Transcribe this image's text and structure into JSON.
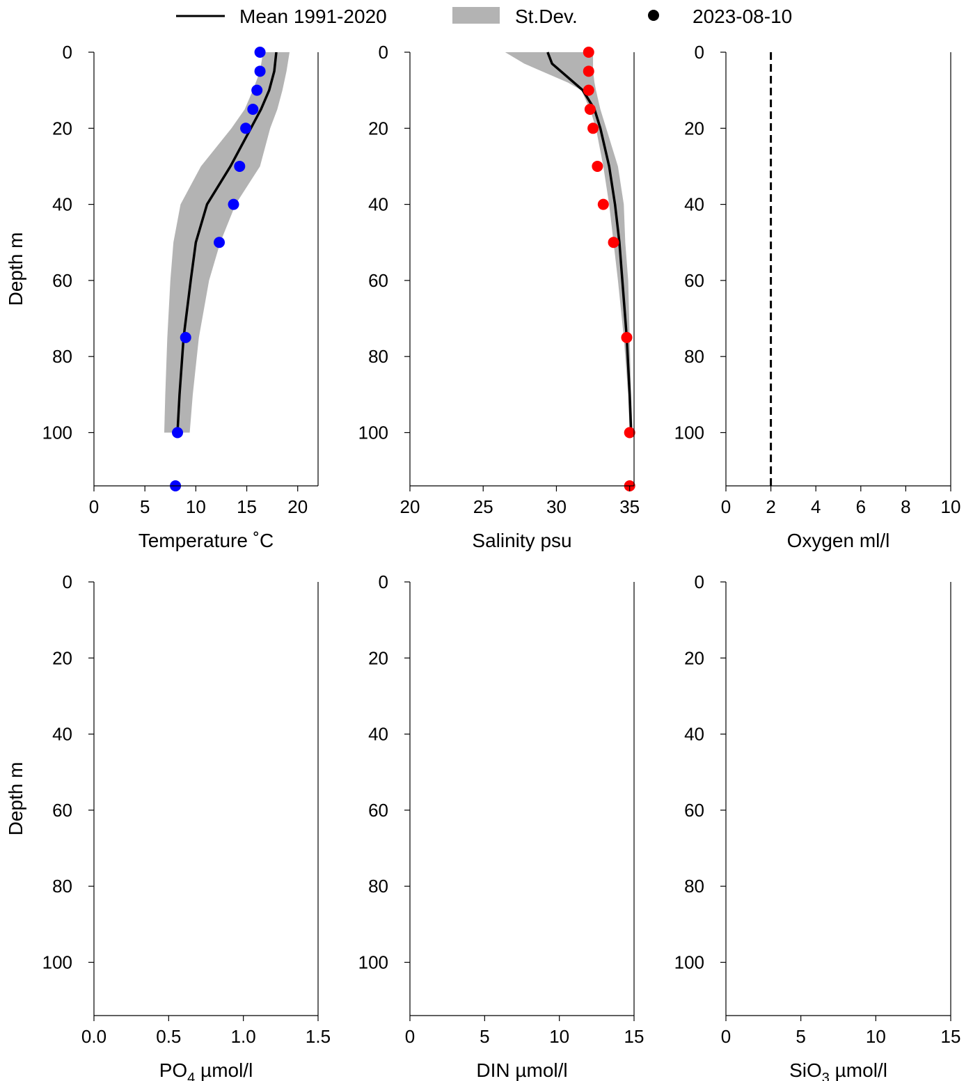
{
  "legend": {
    "placement": "top-center",
    "items": [
      {
        "label": "Mean 1991-2020",
        "kind": "line",
        "color": "#000000"
      },
      {
        "label": "St.Dev.",
        "kind": "band",
        "color": "#b3b3b3"
      },
      {
        "label": "2023-08-10",
        "kind": "marker",
        "color": "#000000"
      }
    ]
  },
  "chart_data": [
    {
      "type": "line",
      "orientation": "depth-profile",
      "xlabel": "Temperature",
      "xlabel_unit": "˚C",
      "ylabel": "Depth m",
      "xlim": [
        0,
        22
      ],
      "ylim": [
        114,
        0
      ],
      "xticks": [
        0,
        5,
        10,
        15,
        20
      ],
      "xtick_labels": [
        "0",
        "5",
        "10",
        "15",
        "20"
      ],
      "yticks": [
        0,
        20,
        40,
        60,
        80,
        100
      ],
      "ytick_labels": [
        "0",
        "20",
        "40",
        "60",
        "80",
        "100"
      ],
      "mean": {
        "depth": [
          0,
          5,
          10,
          15,
          20,
          30,
          40,
          50,
          60,
          75,
          90,
          100
        ],
        "value": [
          17.9,
          17.7,
          17.2,
          16.4,
          15.4,
          13.4,
          11.1,
          10.0,
          9.5,
          8.8,
          8.4,
          8.2
        ]
      },
      "std_band": {
        "depth": [
          0,
          5,
          10,
          15,
          20,
          30,
          40,
          50,
          60,
          75,
          90,
          100
        ],
        "lower": [
          16.6,
          16.3,
          15.6,
          14.8,
          13.5,
          10.5,
          8.5,
          7.8,
          7.5,
          7.2,
          7.0,
          6.9
        ],
        "upper": [
          19.2,
          18.9,
          18.5,
          18.0,
          17.3,
          16.3,
          13.9,
          12.4,
          11.3,
          10.3,
          9.7,
          9.4
        ]
      },
      "observed": {
        "color": "#0000ff",
        "depth": [
          0,
          5,
          10,
          15,
          20,
          30,
          40,
          50,
          75,
          100,
          114
        ],
        "value": [
          16.3,
          16.3,
          16.0,
          15.6,
          14.9,
          14.3,
          13.7,
          12.3,
          9.0,
          8.2,
          8.0
        ]
      }
    },
    {
      "type": "line",
      "orientation": "depth-profile",
      "xlabel": "Salinity psu",
      "ylabel": "",
      "xlim": [
        20,
        35.3
      ],
      "ylim": [
        114,
        0
      ],
      "xticks": [
        20,
        25,
        30,
        35
      ],
      "xtick_labels": [
        "20",
        "25",
        "30",
        "35"
      ],
      "yticks": [
        0,
        20,
        40,
        60,
        80,
        100
      ],
      "ytick_labels": [
        "0",
        "20",
        "40",
        "60",
        "80",
        "100"
      ],
      "mean": {
        "depth": [
          0,
          3,
          5,
          8,
          10,
          15,
          20,
          30,
          40,
          50,
          60,
          75,
          90,
          100
        ],
        "value": [
          29.4,
          29.7,
          30.3,
          31.2,
          31.8,
          32.6,
          33.0,
          33.6,
          34.0,
          34.3,
          34.5,
          34.8,
          35.0,
          35.1
        ]
      },
      "std_band": {
        "depth": [
          0,
          3,
          5,
          8,
          10,
          15,
          20,
          30,
          40,
          50,
          60,
          75,
          90,
          100
        ],
        "lower": [
          26.5,
          27.8,
          29.0,
          30.8,
          31.7,
          32.3,
          32.7,
          33.2,
          33.6,
          33.9,
          34.2,
          34.6,
          34.9,
          35.0
        ],
        "upper": [
          32.5,
          32.5,
          32.5,
          32.6,
          32.7,
          33.0,
          33.4,
          34.2,
          34.6,
          34.7,
          34.9,
          35.0,
          35.1,
          35.2
        ]
      },
      "observed": {
        "color": "#ff0000",
        "depth": [
          0,
          5,
          10,
          15,
          20,
          30,
          40,
          50,
          75,
          100,
          114
        ],
        "value": [
          32.2,
          32.2,
          32.2,
          32.3,
          32.5,
          32.8,
          33.2,
          33.9,
          34.8,
          35.0,
          35.0
        ]
      }
    },
    {
      "type": "line",
      "orientation": "depth-profile",
      "xlabel": "Oxygen ml/l",
      "ylabel": "",
      "xlim": [
        0,
        10
      ],
      "ylim": [
        114,
        0
      ],
      "xticks": [
        0,
        2,
        4,
        6,
        8,
        10
      ],
      "xtick_labels": [
        "0",
        "2",
        "4",
        "6",
        "8",
        "10"
      ],
      "yticks": [
        0,
        20,
        40,
        60,
        80,
        100
      ],
      "ytick_labels": [
        "0",
        "20",
        "40",
        "60",
        "80",
        "100"
      ],
      "reference_line": {
        "value": 2,
        "style": "dashed"
      }
    },
    {
      "type": "line",
      "orientation": "depth-profile",
      "xlabel": "PO",
      "xlabel_sub": "4",
      "xlabel_unit": "µmol/l",
      "ylabel": "Depth m",
      "xlim": [
        0,
        1.5
      ],
      "ylim": [
        114,
        0
      ],
      "xticks": [
        0.0,
        0.5,
        1.0,
        1.5
      ],
      "xtick_labels": [
        "0.0",
        "0.5",
        "1.0",
        "1.5"
      ],
      "yticks": [
        0,
        20,
        40,
        60,
        80,
        100
      ],
      "ytick_labels": [
        "0",
        "20",
        "40",
        "60",
        "80",
        "100"
      ]
    },
    {
      "type": "line",
      "orientation": "depth-profile",
      "xlabel": "DIN µmol/l",
      "ylabel": "",
      "xlim": [
        0,
        15
      ],
      "ylim": [
        114,
        0
      ],
      "xticks": [
        0,
        5,
        10,
        15
      ],
      "xtick_labels": [
        "0",
        "5",
        "10",
        "15"
      ],
      "yticks": [
        0,
        20,
        40,
        60,
        80,
        100
      ],
      "ytick_labels": [
        "0",
        "20",
        "40",
        "60",
        "80",
        "100"
      ]
    },
    {
      "type": "line",
      "orientation": "depth-profile",
      "xlabel": "SiO",
      "xlabel_sub": "3",
      "xlabel_unit": "µmol/l",
      "ylabel": "",
      "xlim": [
        0,
        15
      ],
      "ylim": [
        114,
        0
      ],
      "xticks": [
        0,
        5,
        10,
        15
      ],
      "xtick_labels": [
        "0",
        "5",
        "10",
        "15"
      ],
      "yticks": [
        0,
        20,
        40,
        60,
        80,
        100
      ],
      "ytick_labels": [
        "0",
        "20",
        "40",
        "60",
        "80",
        "100"
      ]
    }
  ]
}
